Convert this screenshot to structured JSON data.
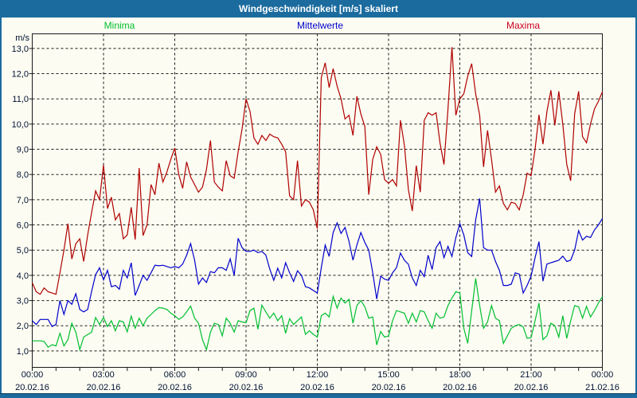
{
  "window": {
    "title": "Windgeschwindigkeit [m/s] skaliert"
  },
  "colors": {
    "titlebar_bg": "#1B6B9E",
    "content_bg": "#FCFCF2",
    "grid": "#1a1a1a",
    "axis_text": "#001133",
    "minima": "#00BF30",
    "mittelwerte": "#0000CC",
    "maxima_line": "#B00000",
    "maxima_label": "#CC0022"
  },
  "chart_data": {
    "type": "line",
    "title": "Windgeschwindigkeit [m/s] skaliert",
    "y_unit_label": "m/s",
    "ylim": [
      0.35,
      13.58
    ],
    "grid": "dashed",
    "legend_position": "top",
    "sample_interval_minutes": 10,
    "x_span_hours": 24,
    "x_minor_tick_interval_hours": 1,
    "y_ticks": [
      {
        "value": 13,
        "label": "13,0"
      },
      {
        "value": 12,
        "label": "12,0"
      },
      {
        "value": 11,
        "label": "11,0"
      },
      {
        "value": 10,
        "label": "10,0"
      },
      {
        "value": 9,
        "label": "9,0"
      },
      {
        "value": 8,
        "label": "8,0"
      },
      {
        "value": 7,
        "label": "7,0"
      },
      {
        "value": 6,
        "label": "6,0"
      },
      {
        "value": 5,
        "label": "5,0"
      },
      {
        "value": 4,
        "label": "4,0"
      },
      {
        "value": 3,
        "label": "3,0"
      },
      {
        "value": 2,
        "label": "2,0"
      },
      {
        "value": 1,
        "label": "1,0"
      }
    ],
    "x_ticks": [
      {
        "hour": 0,
        "time": "00:00",
        "date": "20.02.16"
      },
      {
        "hour": 3,
        "time": "03:00",
        "date": "20.02.16"
      },
      {
        "hour": 6,
        "time": "06:00",
        "date": "20.02.16"
      },
      {
        "hour": 9,
        "time": "09:00",
        "date": "20.02.16"
      },
      {
        "hour": 12,
        "time": "12:00",
        "date": "20.02.16"
      },
      {
        "hour": 15,
        "time": "15:00",
        "date": "20.02.16"
      },
      {
        "hour": 18,
        "time": "18:00",
        "date": "20.02.16"
      },
      {
        "hour": 21,
        "time": "21:00",
        "date": "20.02.16"
      },
      {
        "hour": 24,
        "time": "00:00",
        "date": "21.02.16"
      }
    ],
    "legend": [
      {
        "label": "Minima",
        "color": "#00BF30"
      },
      {
        "label": "Mittelwerte",
        "color": "#0000CC"
      },
      {
        "label": "Maxima",
        "color": "#CC0022"
      }
    ],
    "series": [
      {
        "name": "Minima",
        "color": "#00BF30",
        "values": [
          1.4,
          1.4,
          1.4,
          1.38,
          1.15,
          1.25,
          1.2,
          1.7,
          1.2,
          1.45,
          2.1,
          1.75,
          1.05,
          1.55,
          1.65,
          1.75,
          2.33,
          2.05,
          2.33,
          1.97,
          2.2,
          1.8,
          2.2,
          2.15,
          1.76,
          2.38,
          1.9,
          2.3,
          2.0,
          2.3,
          2.45,
          2.6,
          2.72,
          2.7,
          2.65,
          2.5,
          2.4,
          2.25,
          2.35,
          2.55,
          2.78,
          2.3,
          2.1,
          1.45,
          1.05,
          1.75,
          2.1,
          2.05,
          1.6,
          2.3,
          2.1,
          1.75,
          2.2,
          2.15,
          2.12,
          2.6,
          2.7,
          1.86,
          2.82,
          2.55,
          2.3,
          2.5,
          2.2,
          2.4,
          1.7,
          2.28,
          2.05,
          2.2,
          2.35,
          1.66,
          1.8,
          1.66,
          1.55,
          2.4,
          2.5,
          2.35,
          3.17,
          2.7,
          3.1,
          2.9,
          3.05,
          2.1,
          2.8,
          3.0,
          2.75,
          2.3,
          2.35,
          1.24,
          1.77,
          1.55,
          1.6,
          2.2,
          2.6,
          2.55,
          2.5,
          2.1,
          2.5,
          2.15,
          2.6,
          2.55,
          2.2,
          1.9,
          2.5,
          2.3,
          2.35,
          2.8,
          3.1,
          3.35,
          3.3,
          1.9,
          1.3,
          2.6,
          3.88,
          2.8,
          1.9,
          2.15,
          2.8,
          2.3,
          2.2,
          1.3,
          1.6,
          1.9,
          2.0,
          2.05,
          1.95,
          1.5,
          1.53,
          2.2,
          2.9,
          1.45,
          1.6,
          2.1,
          2.0,
          1.55,
          2.4,
          1.5,
          2.2,
          2.8,
          2.75,
          2.3,
          2.77,
          2.35,
          2.6,
          2.9,
          3.15
        ]
      },
      {
        "name": "Mittelwerte",
        "color": "#0000CC",
        "values": [
          2.2,
          2.05,
          2.25,
          2.25,
          2.25,
          1.97,
          2.05,
          3.0,
          2.45,
          3.0,
          2.85,
          3.27,
          2.65,
          2.55,
          2.65,
          3.37,
          4.03,
          4.3,
          3.82,
          4.2,
          3.55,
          3.6,
          3.45,
          4.2,
          3.9,
          4.5,
          3.2,
          3.6,
          4.0,
          3.8,
          4.1,
          4.4,
          4.38,
          4.4,
          4.35,
          4.3,
          4.35,
          4.3,
          4.45,
          4.8,
          5.26,
          4.6,
          3.65,
          3.9,
          3.72,
          4.15,
          4.1,
          4.3,
          4.3,
          4.2,
          4.65,
          4.0,
          5.47,
          5.1,
          4.95,
          4.95,
          5.0,
          4.9,
          4.95,
          4.8,
          4.25,
          3.8,
          4.28,
          3.9,
          4.5,
          4.1,
          3.76,
          4.18,
          4.0,
          3.55,
          3.5,
          3.4,
          3.3,
          4.3,
          5.2,
          4.75,
          5.7,
          6.08,
          5.66,
          5.9,
          5.35,
          4.6,
          5.2,
          5.7,
          5.3,
          5.0,
          4.1,
          3.06,
          3.97,
          3.85,
          3.8,
          4.1,
          4.3,
          4.88,
          4.6,
          4.44,
          3.9,
          3.6,
          4.2,
          3.95,
          4.8,
          4.23,
          5.1,
          5.34,
          4.7,
          5.15,
          4.75,
          5.5,
          6.05,
          5.6,
          4.9,
          4.75,
          6.2,
          7.05,
          5.1,
          5.0,
          5.0,
          4.55,
          4.2,
          3.6,
          3.6,
          3.65,
          4.1,
          4.05,
          3.3,
          3.6,
          3.97,
          4.7,
          5.34,
          3.77,
          4.45,
          4.5,
          4.55,
          4.6,
          4.76,
          4.55,
          4.6,
          5.0,
          5.77,
          5.4,
          5.55,
          5.5,
          5.8,
          6.0,
          6.25
        ]
      },
      {
        "name": "Maxima",
        "color": "#B00000",
        "values": [
          3.7,
          3.35,
          3.25,
          3.5,
          3.35,
          3.3,
          3.25,
          4.1,
          5.0,
          6.05,
          4.65,
          5.25,
          5.45,
          4.55,
          5.6,
          6.5,
          7.35,
          7.0,
          8.37,
          6.65,
          7.1,
          6.2,
          6.45,
          5.45,
          5.6,
          6.7,
          5.42,
          8.26,
          5.58,
          6.01,
          7.6,
          7.2,
          8.45,
          7.7,
          8.1,
          8.6,
          9.05,
          8.0,
          7.45,
          8.5,
          7.9,
          7.6,
          7.3,
          7.5,
          8.2,
          9.35,
          7.7,
          7.5,
          7.35,
          8.55,
          7.95,
          7.85,
          8.9,
          9.8,
          11.0,
          10.5,
          9.45,
          9.2,
          9.55,
          9.35,
          9.6,
          9.5,
          9.45,
          9.2,
          8.9,
          7.15,
          7.0,
          8.55,
          6.75,
          7.0,
          6.9,
          6.6,
          5.85,
          11.85,
          12.43,
          11.45,
          12.2,
          11.5,
          11.0,
          10.2,
          10.35,
          9.55,
          11.1,
          10.4,
          9.9,
          7.2,
          8.6,
          9.1,
          8.8,
          7.8,
          7.65,
          7.8,
          7.55,
          10.15,
          9.15,
          7.4,
          6.55,
          8.35,
          7.3,
          10.15,
          10.45,
          10.35,
          10.45,
          9.25,
          8.4,
          10.6,
          13.05,
          10.35,
          11.0,
          11.2,
          11.9,
          12.4,
          11.2,
          10.35,
          8.3,
          9.75,
          8.6,
          7.3,
          7.55,
          6.85,
          6.6,
          6.9,
          6.85,
          6.6,
          7.2,
          8.05,
          7.95,
          9.0,
          10.37,
          9.2,
          10.5,
          11.34,
          9.95,
          11.3,
          10.0,
          8.4,
          7.75,
          10.4,
          11.3,
          9.5,
          9.26,
          10.0,
          10.6,
          10.9,
          11.28
        ]
      }
    ]
  }
}
